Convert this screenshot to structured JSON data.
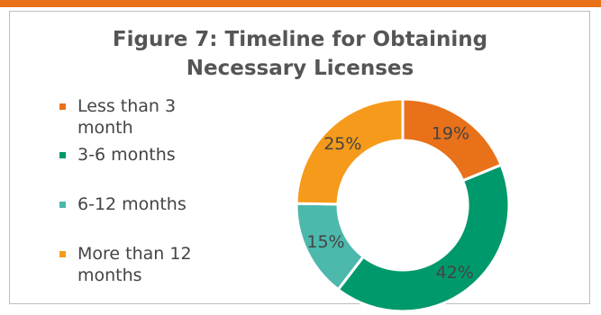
{
  "chart_data": {
    "type": "pie",
    "title": "Figure 7: Timeline for Obtaining Necessary Licenses",
    "categories": [
      "Less than 3 month",
      "3-6 months",
      "6-12 months",
      "More than 12 months"
    ],
    "values": [
      19,
      42,
      15,
      25
    ],
    "value_labels": [
      "19%",
      "42%",
      "15%",
      "25%"
    ],
    "colors": [
      "#e8711a",
      "#00996b",
      "#4db8ac",
      "#f59a1a"
    ]
  }
}
